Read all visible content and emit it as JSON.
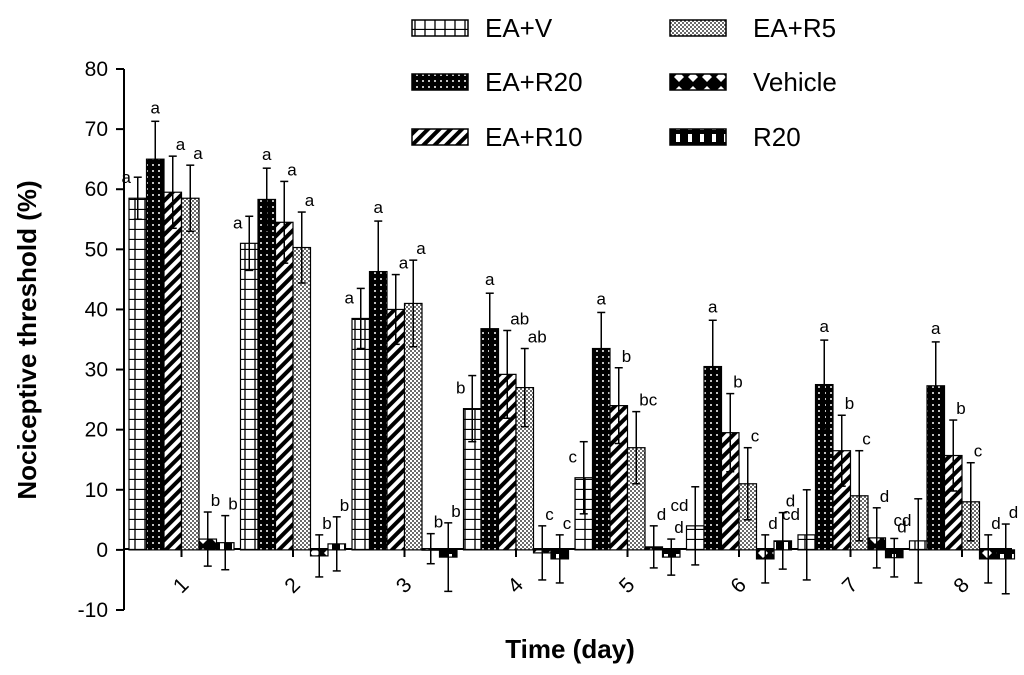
{
  "chart_data": {
    "type": "bar",
    "xlabel": "Time (day)",
    "ylabel": "Nociceptive threshold (%)",
    "ylim": [
      -10,
      80
    ],
    "yticks": [
      -10,
      0,
      10,
      20,
      30,
      40,
      50,
      60,
      70,
      80
    ],
    "categories": [
      "1",
      "2",
      "3",
      "4",
      "5",
      "6",
      "7",
      "8"
    ],
    "series": [
      {
        "name": "EA+V",
        "pattern": "pat-brick",
        "values": [
          58.5,
          51,
          38.5,
          23.5,
          12,
          4,
          2.5,
          1.5
        ],
        "errors": [
          3.5,
          4.5,
          5,
          5.5,
          6,
          6.5,
          7.5,
          7
        ],
        "sig": [
          "a",
          "a",
          "a",
          "b",
          "c",
          "cd",
          "cd",
          "cd"
        ]
      },
      {
        "name": "EA+R20",
        "pattern": "pat-dots",
        "values": [
          65,
          58.3,
          46.3,
          36.8,
          33.5,
          30.5,
          27.5,
          27.3
        ],
        "errors": [
          6.3,
          5.2,
          8.4,
          5.9,
          6,
          7.7,
          7.4,
          7.3
        ],
        "sig": [
          "a",
          "a",
          "a",
          "a",
          "a",
          "a",
          "a",
          "a"
        ]
      },
      {
        "name": "EA+R10",
        "pattern": "pat-diag",
        "values": [
          59.5,
          54.5,
          40,
          29.2,
          24,
          19.5,
          16.5,
          15.7
        ],
        "errors": [
          6,
          6.8,
          5.8,
          7.3,
          6.3,
          6.5,
          5.9,
          5.9
        ],
        "sig": [
          "a",
          "a",
          "a",
          "ab",
          "b",
          "b",
          "b",
          "b"
        ]
      },
      {
        "name": "EA+R5",
        "pattern": "pat-check",
        "values": [
          58.5,
          50.3,
          41,
          27,
          17,
          11,
          9,
          8
        ],
        "errors": [
          5.5,
          5.9,
          7.2,
          6.5,
          6,
          6,
          7.5,
          6.5
        ],
        "sig": [
          "a",
          "a",
          "a",
          "ab",
          "bc",
          "c",
          "c",
          "c"
        ]
      },
      {
        "name": "Vehicle",
        "pattern": "pat-diamond",
        "values": [
          1.8,
          -1,
          0.2,
          -0.5,
          0.5,
          -1.5,
          2,
          -1.5
        ],
        "errors": [
          4.5,
          3.5,
          2.5,
          4.5,
          3.5,
          4,
          5,
          4
        ],
        "sig": [
          "b",
          "b",
          "b",
          "c",
          "d",
          "d",
          "d",
          "d"
        ]
      },
      {
        "name": "R20",
        "pattern": "pat-block",
        "values": [
          1.2,
          1,
          -1.2,
          -1.5,
          -1.2,
          1.5,
          -1.3,
          -1.5
        ],
        "errors": [
          4.5,
          4.5,
          5.7,
          4,
          3,
          4.7,
          3.2,
          5.8
        ],
        "sig": [
          "b",
          "b",
          "b",
          "c",
          "d",
          "d",
          "d",
          "d"
        ]
      }
    ],
    "legend": {
      "placement": "top",
      "items": [
        {
          "name": "EA+V",
          "pattern": "pat-brick"
        },
        {
          "name": "EA+R5",
          "pattern": "pat-check"
        },
        {
          "name": "EA+R20",
          "pattern": "pat-dots"
        },
        {
          "name": "Vehicle",
          "pattern": "pat-diamond"
        },
        {
          "name": "EA+R10",
          "pattern": "pat-diag"
        },
        {
          "name": "R20",
          "pattern": "pat-block"
        }
      ]
    },
    "grid": false
  }
}
